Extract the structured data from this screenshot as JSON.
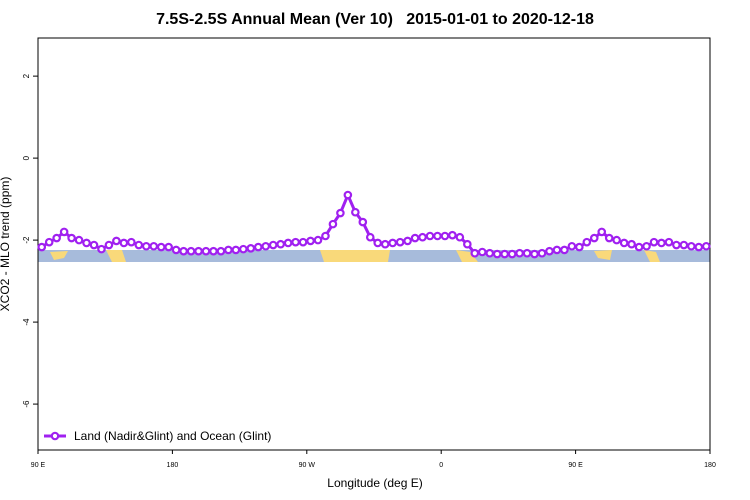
{
  "chart_data": {
    "type": "line",
    "title": "7.5S-2.5S Annual Mean (Ver 10)   2015-01-01 to 2020-12-18",
    "x_label": "Longitude (deg E)",
    "y_label": "XCO2 - MLO trend (ppm)",
    "x": [
      92.5,
      97.5,
      102.5,
      107.5,
      112.5,
      117.5,
      122.5,
      127.5,
      132.5,
      137.5,
      142.5,
      147.5,
      152.5,
      157.5,
      162.5,
      167.5,
      172.5,
      177.5,
      182.5,
      187.5,
      192.5,
      197.5,
      202.5,
      207.5,
      212.5,
      217.5,
      222.5,
      227.5,
      232.5,
      237.5,
      242.5,
      247.5,
      252.5,
      257.5,
      262.5,
      267.5,
      272.5,
      277.5,
      282.5,
      287.5,
      292.5,
      297.5,
      302.5,
      307.5,
      312.5,
      317.5,
      322.5,
      327.5,
      332.5,
      337.5,
      342.5,
      347.5,
      352.5,
      357.5,
      362.5,
      367.5,
      372.5,
      377.5,
      382.5,
      387.5,
      392.5,
      397.5,
      402.5,
      407.5,
      412.5,
      417.5,
      422.5,
      427.5,
      432.5,
      437.5,
      442.5,
      447.5,
      452.5,
      457.5,
      462.5,
      467.5,
      472.5,
      477.5,
      482.5,
      487.5,
      492.5,
      497.5,
      502.5,
      507.5,
      512.5,
      517.5,
      522.5,
      527.5,
      532.5,
      537.5
    ],
    "series": [
      {
        "name": "Land (Nadir&Glint) and Ocean (Glint)",
        "color": "#a020f0",
        "values": [
          -2.17,
          -2.05,
          -1.95,
          -1.8,
          -1.95,
          -2.0,
          -2.07,
          -2.12,
          -2.22,
          -2.12,
          -2.02,
          -2.07,
          -2.05,
          -2.12,
          -2.15,
          -2.15,
          -2.17,
          -2.17,
          -2.24,
          -2.27,
          -2.27,
          -2.27,
          -2.27,
          -2.27,
          -2.27,
          -2.24,
          -2.24,
          -2.22,
          -2.2,
          -2.17,
          -2.15,
          -2.12,
          -2.1,
          -2.07,
          -2.05,
          -2.05,
          -2.02,
          -2.0,
          -1.9,
          -1.61,
          -1.34,
          -0.9,
          -1.32,
          -1.56,
          -1.93,
          -2.07,
          -2.1,
          -2.07,
          -2.05,
          -2.02,
          -1.95,
          -1.93,
          -1.9,
          -1.9,
          -1.9,
          -1.88,
          -1.93,
          -2.1,
          -2.32,
          -2.29,
          -2.32,
          -2.34,
          -2.34,
          -2.34,
          -2.32,
          -2.32,
          -2.34,
          -2.32,
          -2.27,
          -2.24,
          -2.24,
          -2.15,
          -2.17,
          -2.05,
          -1.95,
          -1.8,
          -1.95,
          -2.0,
          -2.07,
          -2.1,
          -2.17,
          -2.15,
          -2.05,
          -2.07,
          -2.05,
          -2.12,
          -2.12,
          -2.15,
          -2.17,
          -2.15
        ]
      }
    ],
    "xlim": [
      90,
      540
    ],
    "xticks": [
      {
        "value": 90,
        "label": "90 E"
      },
      180,
      {
        "value": 270,
        "label": "90 W"
      },
      {
        "value": 360,
        "label": "0"
      },
      {
        "value": 450,
        "label": "90 E"
      },
      {
        "value": 540,
        "label": "180"
      }
    ],
    "ylim": [
      -7.12,
      2.93
    ],
    "yticks": [
      -6,
      -4,
      -2,
      0,
      2
    ],
    "legend": "bottom-left"
  }
}
